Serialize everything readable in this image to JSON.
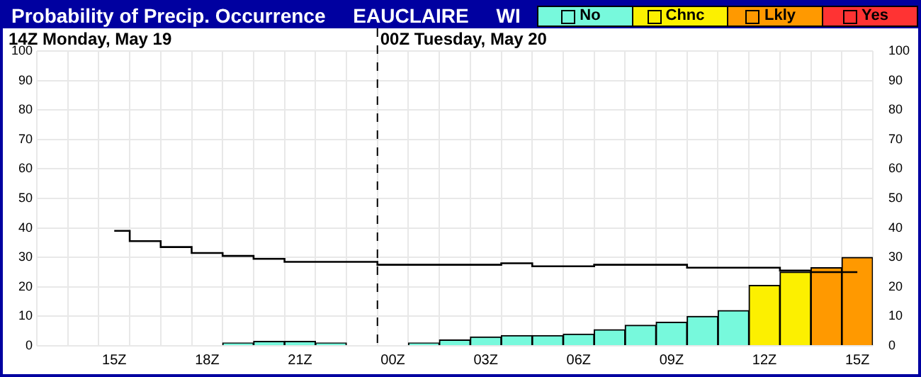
{
  "chart_data": {
    "type": "bar",
    "title": "Probability of Precip. Occurrence     EAUCLAIRE     WI",
    "categories": [
      null,
      null,
      "15Z",
      null,
      null,
      "18Z",
      null,
      null,
      "21Z",
      null,
      null,
      "00Z",
      null,
      null,
      "03Z",
      null,
      null,
      "06Z",
      null,
      null,
      "09Z",
      null,
      null,
      "12Z",
      null,
      null,
      "15Z"
    ],
    "series": [
      {
        "name": "No",
        "color": "#77f9dc",
        "values": [
          null,
          null,
          0,
          0,
          0,
          0,
          1,
          1.5,
          1.5,
          1,
          0,
          0,
          1,
          2,
          3,
          3.5,
          3.5,
          4,
          5.5,
          7,
          8,
          10,
          12,
          null,
          null,
          null,
          null
        ]
      },
      {
        "name": "Chnc",
        "color": "#fcf000",
        "values": [
          null,
          null,
          null,
          null,
          null,
          null,
          null,
          null,
          null,
          null,
          null,
          null,
          null,
          null,
          null,
          null,
          null,
          null,
          null,
          null,
          null,
          null,
          null,
          20.5,
          25,
          null,
          null
        ]
      },
      {
        "name": "Lkly",
        "color": "#ff9900",
        "values": [
          null,
          null,
          null,
          null,
          null,
          null,
          null,
          null,
          null,
          null,
          null,
          null,
          null,
          null,
          null,
          null,
          null,
          null,
          null,
          null,
          null,
          null,
          null,
          null,
          null,
          26.5,
          30
        ]
      },
      {
        "name": "Yes",
        "color": "#ff3333",
        "values": [
          null,
          null,
          null,
          null,
          null,
          null,
          null,
          null,
          null,
          null,
          null,
          null,
          null,
          null,
          null,
          null,
          null,
          null,
          null,
          null,
          null,
          null,
          null,
          null,
          null,
          null,
          null
        ]
      },
      {
        "type": "step",
        "color": "#000000",
        "values": [
          null,
          null,
          39,
          35.5,
          33.5,
          31.5,
          30.5,
          29.5,
          28.5,
          28.5,
          28.5,
          27.5,
          27.5,
          27.5,
          27.5,
          28,
          27,
          27,
          27.5,
          27.5,
          27.5,
          26.5,
          26.5,
          26.5,
          25.5,
          25,
          25
        ]
      }
    ],
    "stacked": true,
    "ylim": [
      0,
      100
    ],
    "yticks": [
      0,
      10,
      20,
      30,
      40,
      50,
      60,
      70,
      80,
      90,
      100
    ],
    "y2lim": [
      0,
      100
    ],
    "y2ticks": [
      0,
      10,
      20,
      30,
      40,
      50,
      60,
      70,
      80,
      90,
      100
    ],
    "grid": true,
    "legend": "top right",
    "ref_lines": [
      {
        "axis": "x",
        "value": "00Z",
        "label": "00Z Tuesday, May 20",
        "line_style": "dashed",
        "color": "#000000"
      }
    ],
    "annotations": [
      "14Z Monday, May 19"
    ]
  }
}
